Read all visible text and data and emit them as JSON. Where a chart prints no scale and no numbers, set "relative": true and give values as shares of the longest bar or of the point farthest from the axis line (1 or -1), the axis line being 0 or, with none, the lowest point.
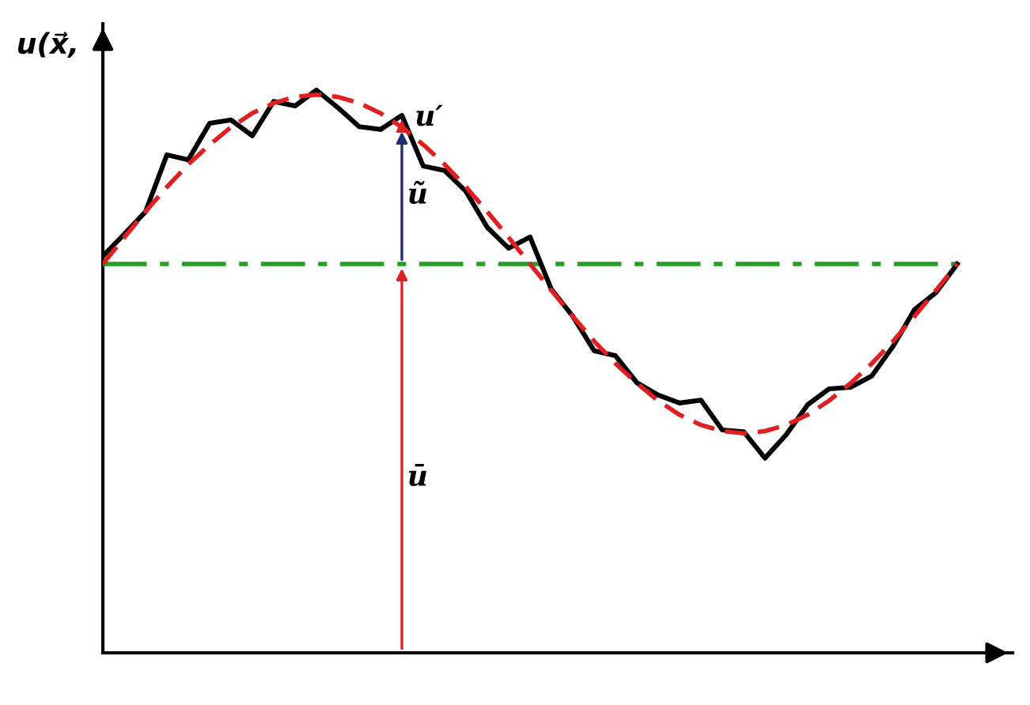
{
  "chart_data": {
    "type": "line",
    "relative": true,
    "ylabel": "u(x⃗,",
    "marker": "none",
    "categories": [
      null,
      null,
      null,
      null,
      null,
      null,
      null,
      null,
      null,
      null,
      null,
      null,
      null,
      null,
      null,
      null,
      null,
      null,
      null,
      null,
      null,
      null,
      null,
      null,
      null,
      null,
      null,
      null,
      null,
      null,
      null,
      null,
      null,
      null,
      null,
      null,
      null,
      null,
      null,
      null,
      null
    ],
    "series": [
      {
        "color": "#22a022",
        "line_style": "dashdot",
        "values": [
          0.691,
          0.691,
          0.691,
          0.691,
          0.691,
          0.691,
          0.691,
          0.691,
          0.691,
          0.691,
          0.691,
          0.691,
          0.691,
          0.691,
          0.691,
          0.691,
          0.691,
          0.691,
          0.691,
          0.691,
          0.691,
          0.691,
          0.691,
          0.691,
          0.691,
          0.691,
          0.691,
          0.691,
          0.691,
          0.691,
          0.691,
          0.691,
          0.691,
          0.691,
          0.691,
          0.691,
          0.691,
          0.691,
          0.691,
          0.691,
          0.691
        ]
      },
      {
        "color": "#e02020",
        "line_style": "dashed",
        "values": [
          0.691,
          0.738,
          0.784,
          0.828,
          0.868,
          0.903,
          0.934,
          0.959,
          0.977,
          0.988,
          0.992,
          0.988,
          0.977,
          0.959,
          0.934,
          0.903,
          0.868,
          0.828,
          0.784,
          0.738,
          0.691,
          0.644,
          0.598,
          0.554,
          0.514,
          0.479,
          0.448,
          0.423,
          0.405,
          0.394,
          0.39,
          0.394,
          0.405,
          0.423,
          0.448,
          0.479,
          0.514,
          0.554,
          0.598,
          0.644,
          0.691
        ]
      },
      {
        "color": "#000000",
        "line_style": "solid",
        "values": [
          0.705,
          0.744,
          0.784,
          0.885,
          0.876,
          0.941,
          0.947,
          0.919,
          0.98,
          0.972,
          1.0,
          0.969,
          0.935,
          0.93,
          0.955,
          0.865,
          0.857,
          0.82,
          0.756,
          0.719,
          0.739,
          0.646,
          0.598,
          0.537,
          0.528,
          0.48,
          0.458,
          0.444,
          0.449,
          0.396,
          0.393,
          0.346,
          0.388,
          0.441,
          0.469,
          0.472,
          0.492,
          0.545,
          0.61,
          0.64,
          0.691
        ]
      }
    ],
    "annotations": [
      "ū",
      "ũ",
      "u′"
    ]
  }
}
